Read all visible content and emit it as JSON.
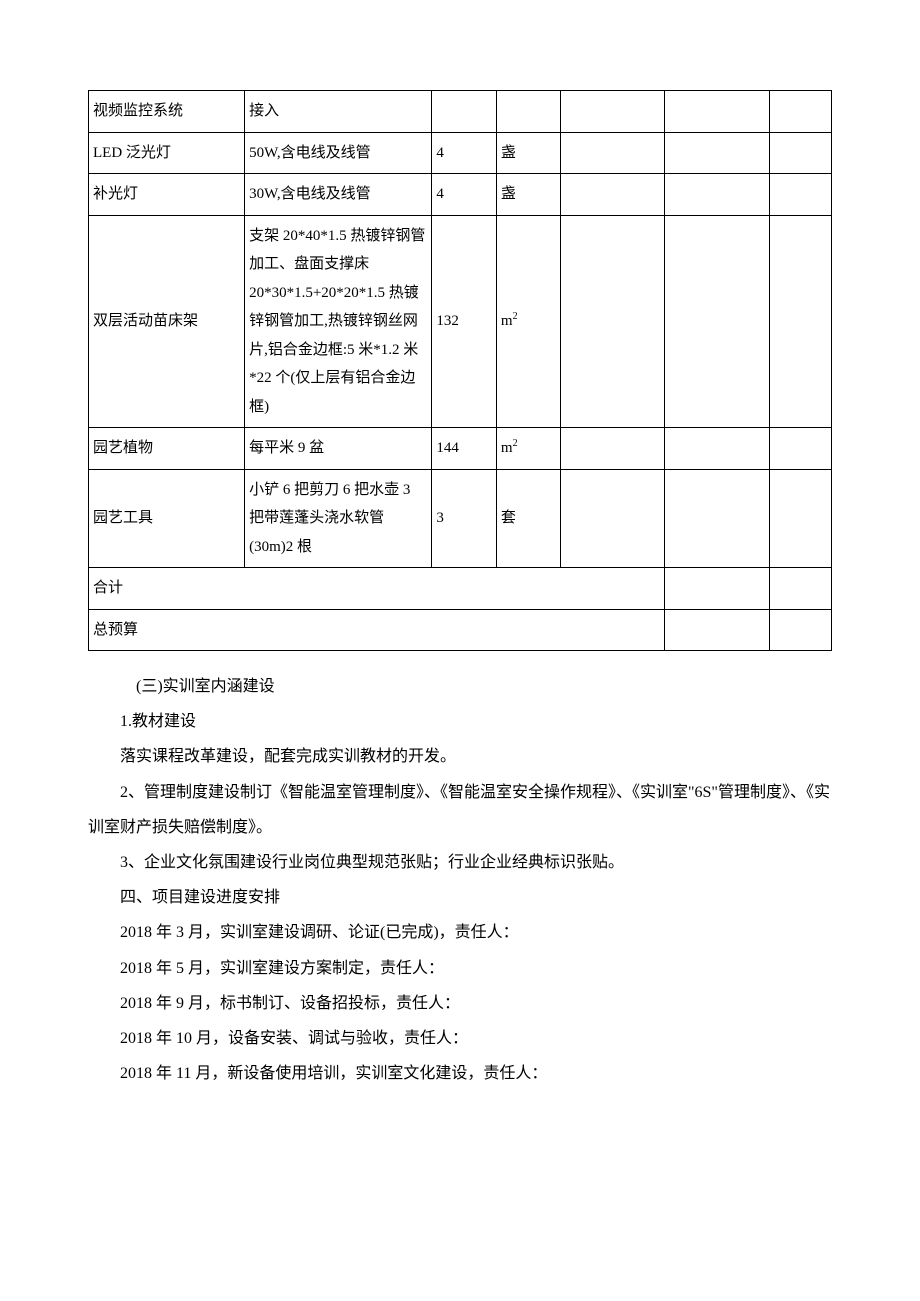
{
  "table": {
    "rows": [
      {
        "c1": "视频监控系统",
        "c2": "接入",
        "c3": "",
        "c4": "",
        "c5": "",
        "c6": "",
        "c7": ""
      },
      {
        "c1": "LED 泛光灯",
        "c2": "50W,含电线及线管",
        "c3": "4",
        "c4": "盏",
        "c5": "",
        "c6": "",
        "c7": ""
      },
      {
        "c1": "补光灯",
        "c2": "30W,含电线及线管",
        "c3": "4",
        "c4": "盏",
        "c5": "",
        "c6": "",
        "c7": ""
      },
      {
        "c1": "双层活动苗床架",
        "c2": "支架 20*40*1.5 热镀锌钢管加工、盘面支撑床 20*30*1.5+20*20*1.5 热镀锌钢管加工,热镀锌钢丝网片,铝合金边框:5 米*1.2 米*22 个(仅上层有铝合金边框)",
        "c3": "132",
        "c4": "m²",
        "c5": "",
        "c6": "",
        "c7": ""
      },
      {
        "c1": "园艺植物",
        "c2": "每平米 9 盆",
        "c3": "144",
        "c4": "m²",
        "c5": "",
        "c6": "",
        "c7": ""
      },
      {
        "c1": "园艺工具",
        "c2": "小铲 6 把剪刀 6 把水壶 3 把带莲蓬头浇水软管(30m)2 根",
        "c3": "3",
        "c4": "套",
        "c5": "",
        "c6": "",
        "c7": ""
      }
    ],
    "total_label": "合计",
    "budget_label": "总预算"
  },
  "body": {
    "h1": "(三)实训室内涵建设",
    "p1": "1.教材建设",
    "p2": "落实课程改革建设，配套完成实训教材的开发。",
    "p3": "2、管理制度建设制订《智能温室管理制度》、《智能温室安全操作规程》、《实训室\"6S\"管理制度》、《实训室财产损失赔偿制度》。",
    "p4": "3、企业文化氛围建设行业岗位典型规范张贴；行业企业经典标识张贴。",
    "h2": "四、项目建设进度安排",
    "s1": "2018 年 3 月，实训室建设调研、论证(已完成)，责任人：",
    "s2": "2018 年 5 月，实训室建设方案制定，责任人：",
    "s3": "2018 年 9 月，标书制订、设备招投标，责任人：",
    "s4": "2018 年 10 月，设备安装、调试与验收，责任人：",
    "s5": "2018 年 11 月，新设备使用培训，实训室文化建设，责任人："
  }
}
